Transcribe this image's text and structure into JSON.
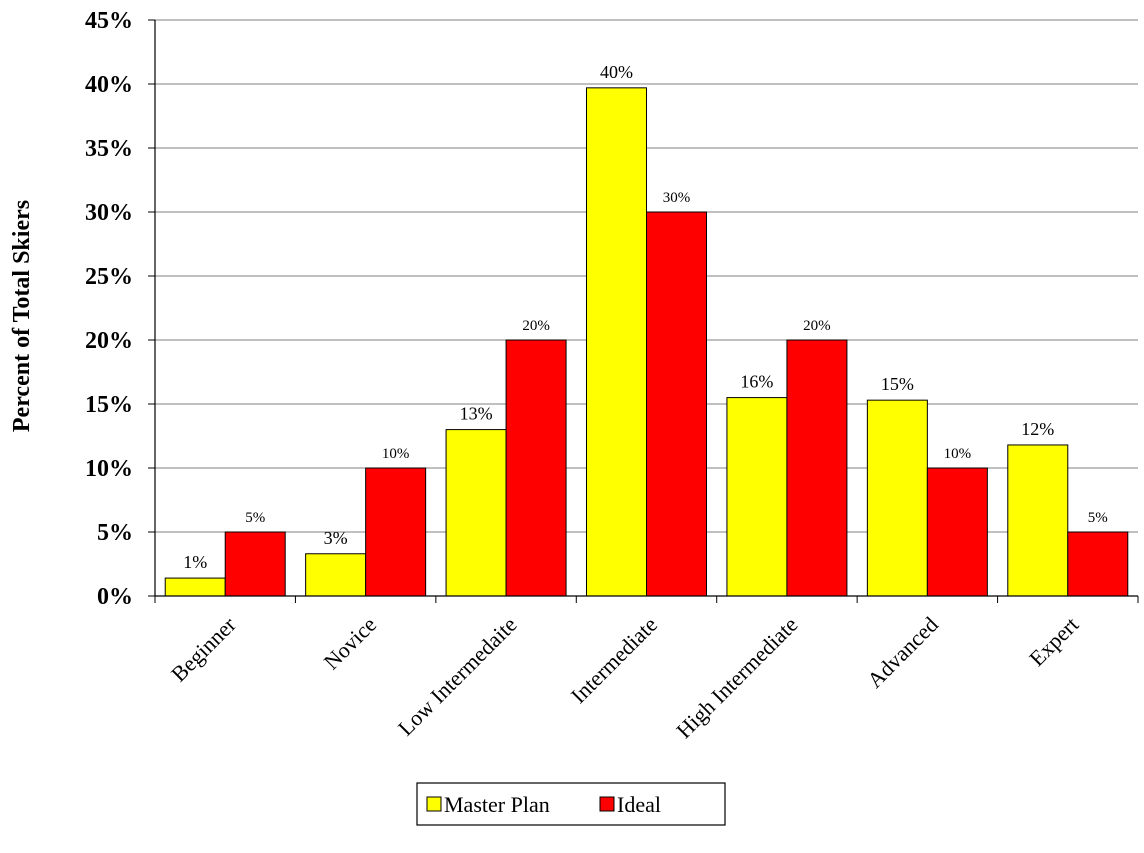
{
  "chart_data": {
    "type": "bar",
    "title": "",
    "xlabel": "",
    "ylabel": "Percent of Total Skiers",
    "ylim": [
      0,
      45
    ],
    "yticks": [
      "0%",
      "5%",
      "10%",
      "15%",
      "20%",
      "25%",
      "30%",
      "35%",
      "40%",
      "45%"
    ],
    "grid": "horizontal",
    "legend_position": "bottom-center",
    "categories": [
      "Beginner",
      "Novice",
      "Low Intermedaite",
      "Intermediate",
      "High Intermediate",
      "Advanced",
      "Expert"
    ],
    "series": [
      {
        "name": "Master Plan",
        "color": "#FFFF00",
        "values": [
          1.4,
          3.3,
          13.0,
          39.7,
          15.5,
          15.3,
          11.8
        ],
        "labels": [
          "1%",
          "3%",
          "13%",
          "40%",
          "16%",
          "15%",
          "12%"
        ]
      },
      {
        "name": "Ideal",
        "color": "#FF0000",
        "values": [
          5,
          10,
          20,
          30,
          20,
          10,
          5
        ],
        "labels": [
          "5%",
          "10%",
          "20%",
          "30%",
          "20%",
          "10%",
          "5%"
        ]
      }
    ]
  }
}
